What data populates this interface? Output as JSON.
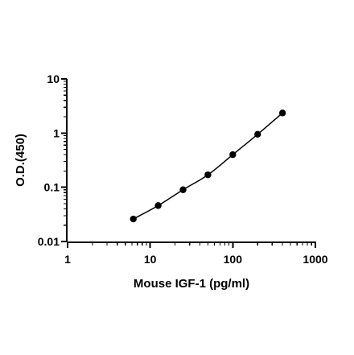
{
  "chart_data": {
    "type": "scatter",
    "xlabel": "Mouse IGF-1 (pg/ml)",
    "ylabel": "O.D.(450)",
    "x_scale": "log",
    "y_scale": "log",
    "xlim": [
      1,
      1000
    ],
    "ylim": [
      0.01,
      10
    ],
    "x_ticks": [
      "1",
      "10",
      "100",
      "1000"
    ],
    "y_ticks": [
      "0.01",
      "0.1",
      "1",
      "10"
    ],
    "grid": false,
    "legend": "none",
    "fit_line": true,
    "point_color": "#000000",
    "line_color": "#000000",
    "series": [
      {
        "x": [
          6.25,
          12.5,
          25,
          50,
          100,
          200,
          400
        ],
        "y": [
          0.026,
          0.046,
          0.09,
          0.17,
          0.4,
          0.95,
          2.35
        ]
      }
    ]
  }
}
